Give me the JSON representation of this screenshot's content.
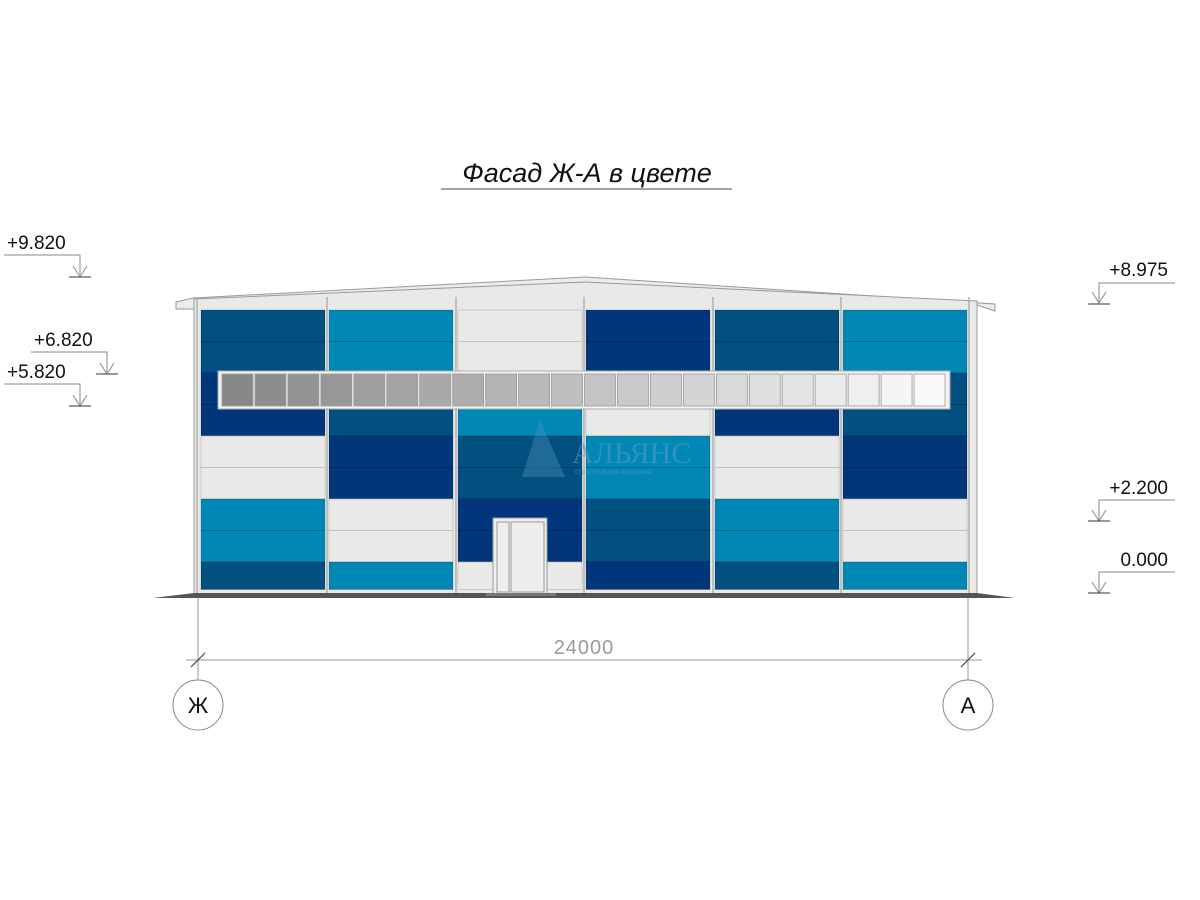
{
  "title": "Фасад Ж-А в цвете",
  "levels_left": [
    "+9.820",
    "+6.820",
    "+5.820"
  ],
  "levels_right": [
    "+8.975",
    "+2.200",
    "0.000"
  ],
  "dimension": "24000",
  "axes": [
    "Ж",
    "А"
  ],
  "watermark": {
    "name": "АЛЬЯНС",
    "tagline": "строительная компания"
  },
  "colors": {
    "D": "#01507f",
    "N": "#02367a",
    "L": "#0087b6",
    "W": "#e9eae7"
  },
  "facade_columns": [
    [
      "D",
      "D",
      "N",
      "N",
      "W",
      "W",
      "L",
      "L",
      "D"
    ],
    [
      "L",
      "L",
      "L",
      "D",
      "N",
      "N",
      "W",
      "W",
      "L"
    ],
    [
      "W",
      "W",
      "W",
      "L",
      "D",
      "D",
      "N",
      "N",
      "W"
    ],
    [
      "N",
      "N",
      "N",
      "W",
      "L",
      "L",
      "D",
      "D",
      "N"
    ],
    [
      "D",
      "D",
      "D",
      "N",
      "W",
      "W",
      "L",
      "L",
      "D"
    ],
    [
      "L",
      "L",
      "D",
      "D",
      "N",
      "N",
      "W",
      "W",
      "L"
    ]
  ],
  "window_panes": 22
}
